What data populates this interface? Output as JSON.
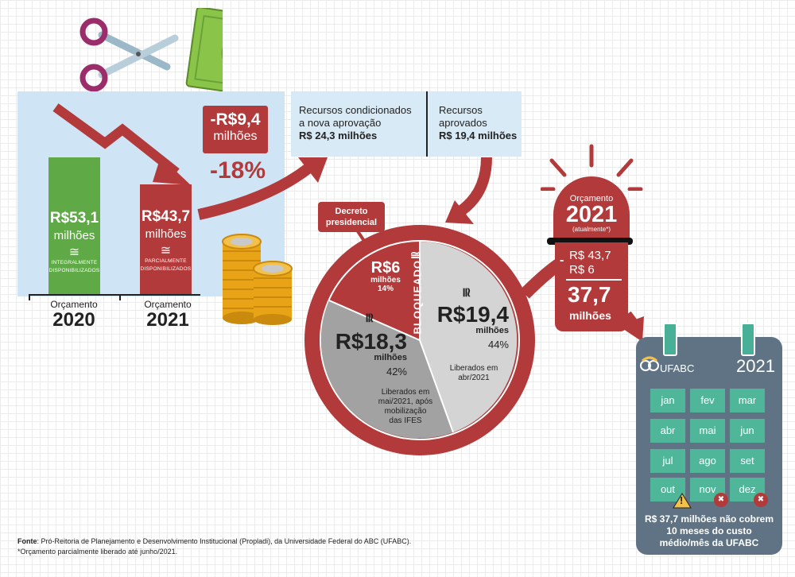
{
  "chart": {
    "bar2020": {
      "value": "R$53,1",
      "unit": "milhões",
      "approx": "≅",
      "status_line1": "INTEGRALMENTE",
      "status_line2": "DISPONIBILIZADOS",
      "label_top": "Orçamento",
      "year": "2020",
      "color": "#5faa46"
    },
    "bar2021": {
      "value": "R$43,7",
      "unit": "milhões",
      "approx": "≅",
      "status_line1": "PARCIALMENTE",
      "status_line2": "DISPONIBILIZADOS",
      "label_top": "Orçamento",
      "year": "2021",
      "color": "#b23a3a"
    }
  },
  "cut": {
    "value": "-R$9,4",
    "unit": "milhões",
    "percent": "-18%"
  },
  "info": {
    "col1_line1": "Recursos condicionados",
    "col1_line2": "a nova aprovação",
    "col1_value": "R$ 24,3 milhões",
    "col2_line1": "Recursos",
    "col2_line2": "aprovados",
    "col2_value": "R$ 19,4 milhões"
  },
  "decreto": {
    "line1": "Decreto",
    "line2": "presidencial"
  },
  "pie": {
    "blocked": {
      "value": "R$6",
      "unit": "milhões",
      "percent": "14%",
      "label": "BLOQUEADO",
      "approx": "≅"
    },
    "released_apr": {
      "value": "R$19,4",
      "unit": "milhões",
      "percent": "44%",
      "approx": "≅",
      "desc_line1": "Liberados em",
      "desc_line2": "abr/2021"
    },
    "released_may": {
      "value": "R$18,3",
      "unit": "milhões",
      "percent": "42%",
      "approx": "≅",
      "desc_line1": "Liberados em",
      "desc_line2": "mai/2021, após",
      "desc_line3": "mobilização",
      "desc_line4": "das IFES"
    }
  },
  "siren": {
    "label": "Orçamento",
    "year": "2021",
    "note": "(atualmente*)"
  },
  "calc": {
    "minus": "-",
    "line1": "R$ 43,7",
    "line2": "R$ 6",
    "result": "37,7",
    "unit": "milhões"
  },
  "calendar": {
    "logo": "UFABC",
    "year": "2021",
    "months": [
      "jan",
      "fev",
      "mar",
      "abr",
      "mai",
      "jun",
      "jul",
      "ago",
      "set",
      "out",
      "nov",
      "dez"
    ],
    "caption_line1": "R$ 37,7 milhões não cobrem",
    "caption_line2": "10 meses do custo",
    "caption_line3": "médio/mês da UFABC",
    "warn_symbol": "!",
    "x_symbol": "✖"
  },
  "footer": {
    "source_label": "Fonte",
    "source_text": ": Pró-Reitoria de Planejamento e Desenvolvimento Institucional (Propladi), da Universidade Federal do ABC (UFABC).",
    "note": "*Orçamento parcialmente liberado até junho/2021."
  },
  "money_symbol": "$",
  "colors": {
    "red": "#b23a3a",
    "green": "#5faa46",
    "light_blue": "#cfe4f4",
    "teal": "#4fb69a",
    "slate": "#5f7384",
    "gold": "#e8a317",
    "pie_light": "#d4d4d4",
    "pie_dark": "#a2a2a2"
  }
}
